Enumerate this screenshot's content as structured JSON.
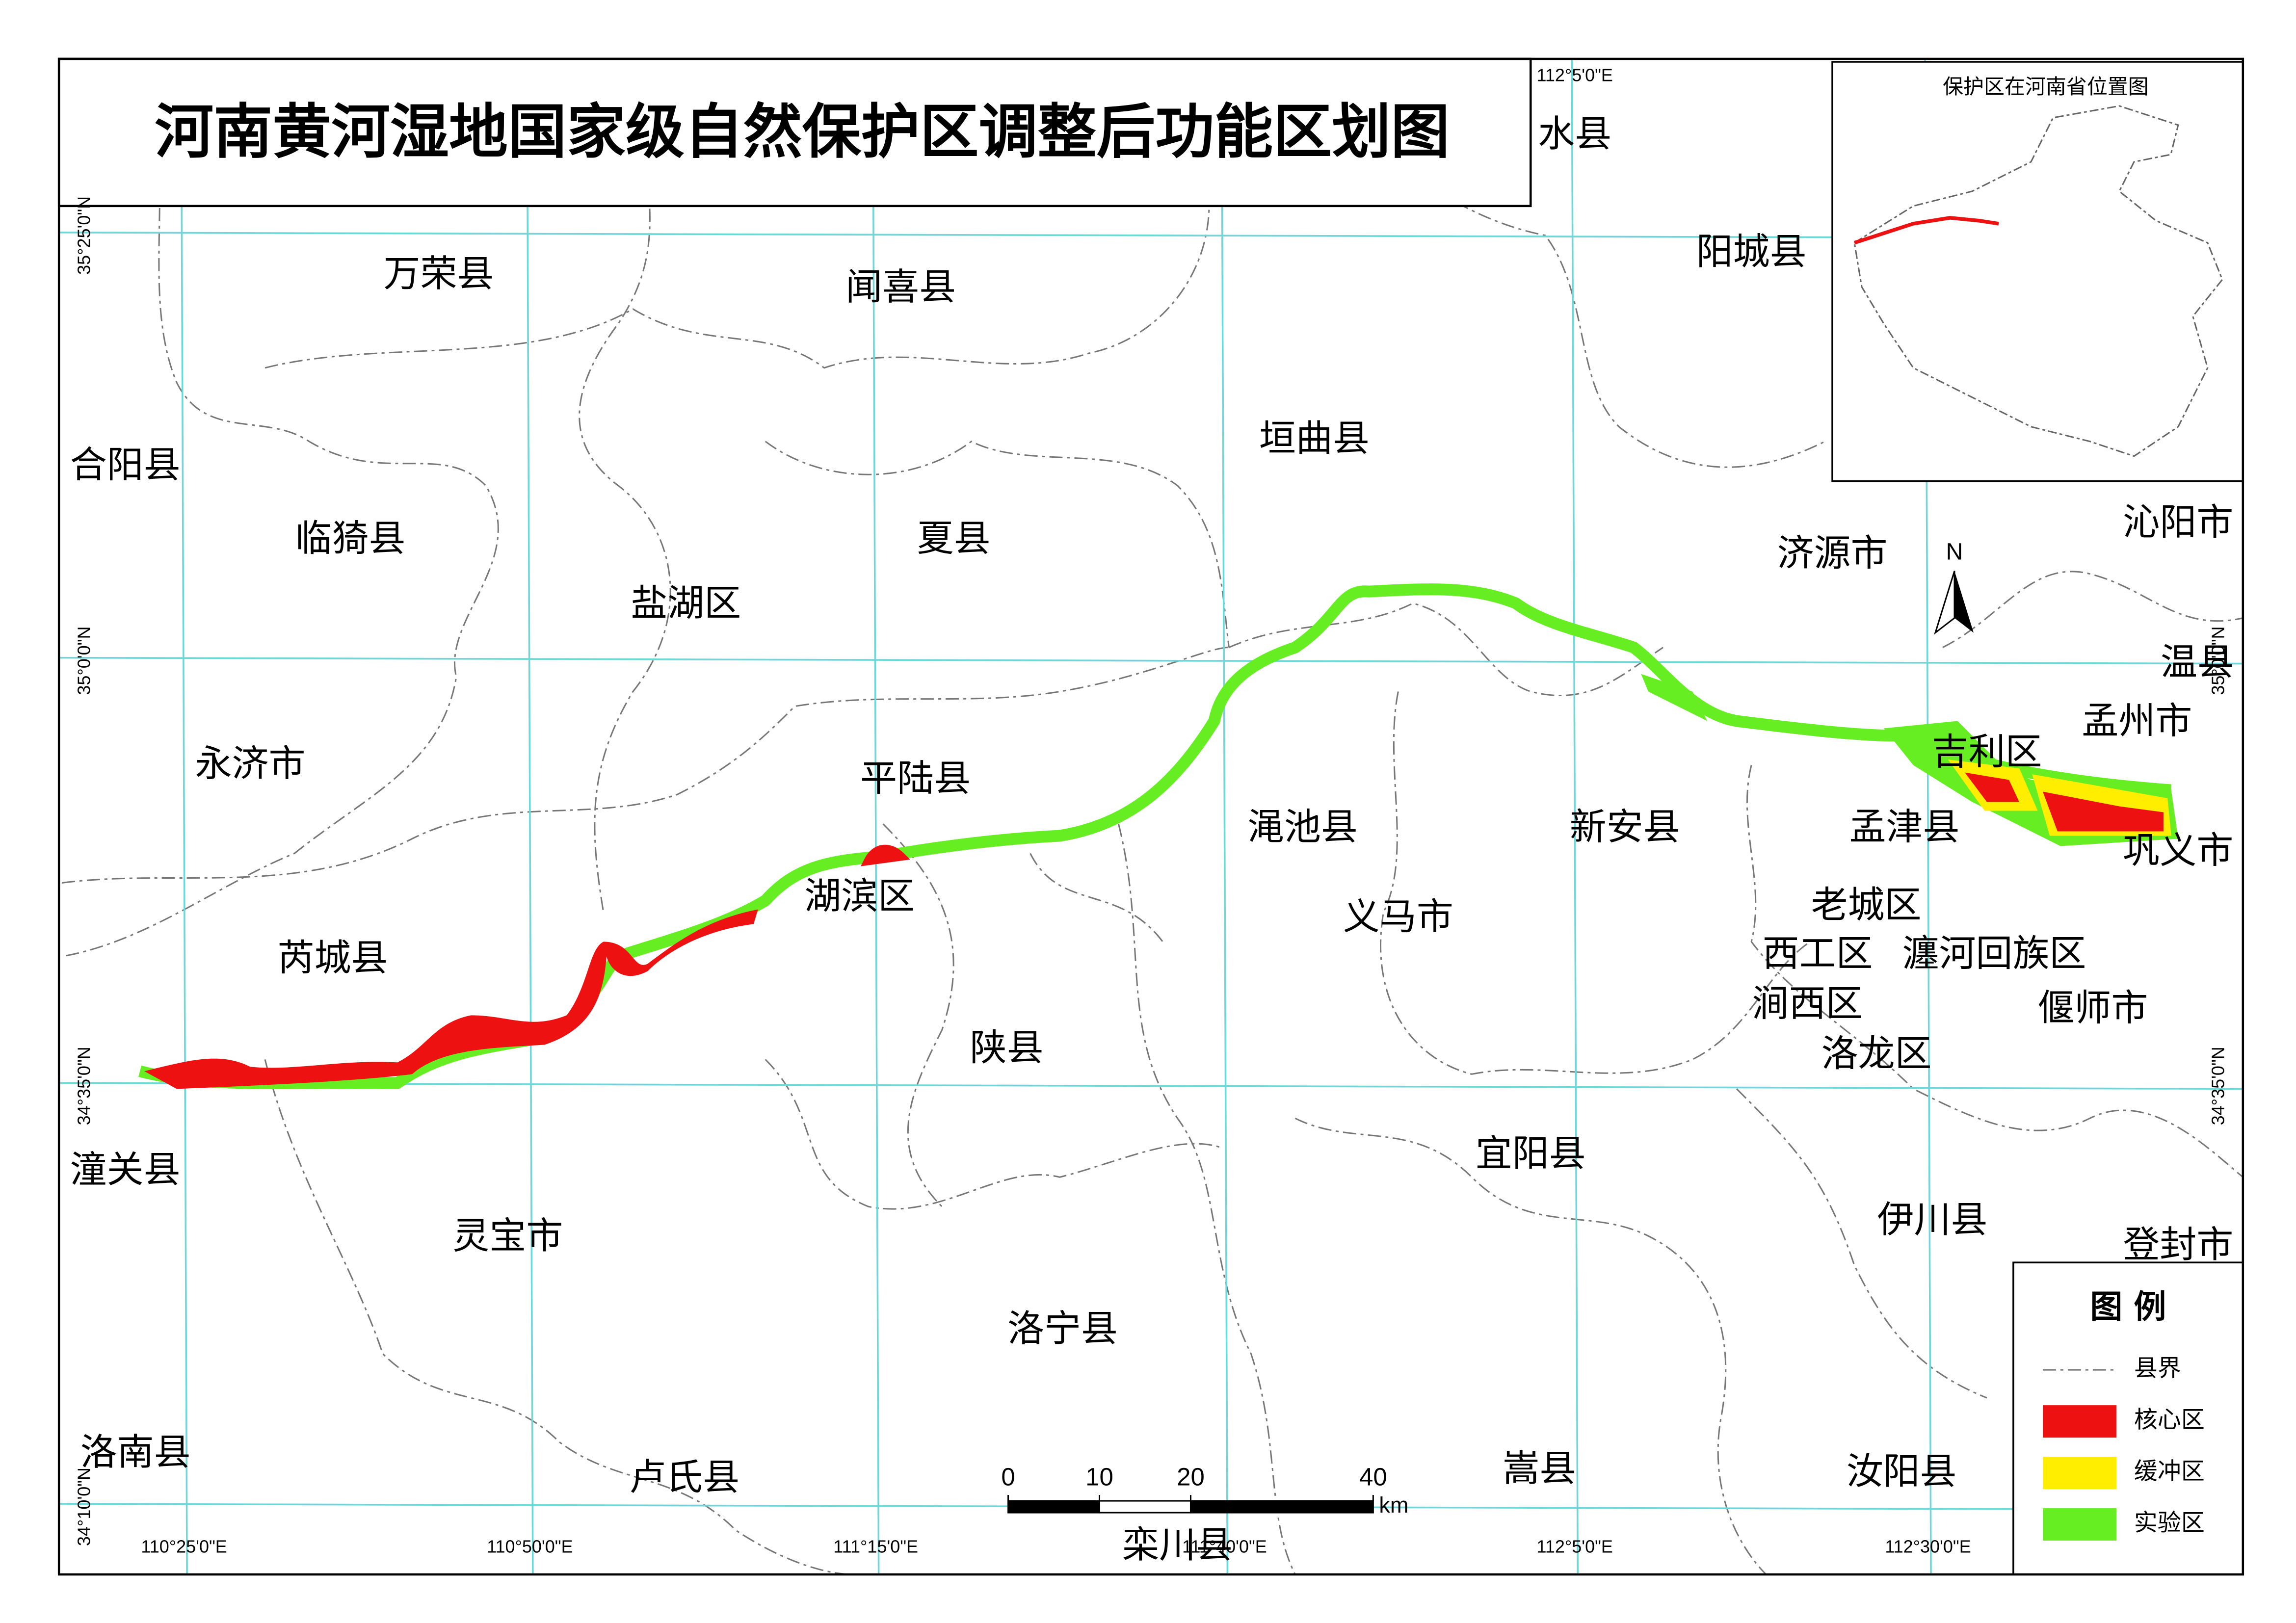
{
  "title": "河南黄河湿地国家级自然保护区调整后功能区划图",
  "inset": {
    "title": "保护区在河南省位置图"
  },
  "north": "N",
  "labels": [
    "万荣县",
    "闻喜县",
    "垣曲县",
    "阳城县",
    "水县",
    "合阳县",
    "临猗县",
    "夏县",
    "盐湖区",
    "济源市",
    "沁阳市",
    "温县",
    "孟州市",
    "永济市",
    "平陆县",
    "吉利区",
    "渑池县",
    "新安县",
    "孟津县",
    "巩义市",
    "湖滨区",
    "义马市",
    "老城区",
    "西工区",
    "瀍河回族区",
    "芮城县",
    "涧西区",
    "偃师市",
    "陕县",
    "洛龙区",
    "潼关县",
    "宜阳县",
    "灵宝市",
    "伊川县",
    "登封市",
    "洛宁县",
    "洛南县",
    "卢氏县",
    "嵩县",
    "汝阳县",
    "栾川县"
  ],
  "graticule": {
    "lon": [
      "110°25'0\"E",
      "110°50'0\"E",
      "111°15'0\"E",
      "111°40'0\"E",
      "112°5'0\"E",
      "112°30'0\"E"
    ],
    "lat": [
      "35°25'0\"N",
      "35°0'0\"N",
      "34°35'0\"N",
      "34°10'0\"N"
    ]
  },
  "scale": {
    "ticks": [
      0,
      10,
      20,
      40
    ],
    "unit": "km"
  },
  "legend": {
    "title": "图 例",
    "items": [
      "县界",
      "核心区",
      "缓冲区",
      "实验区"
    ]
  }
}
